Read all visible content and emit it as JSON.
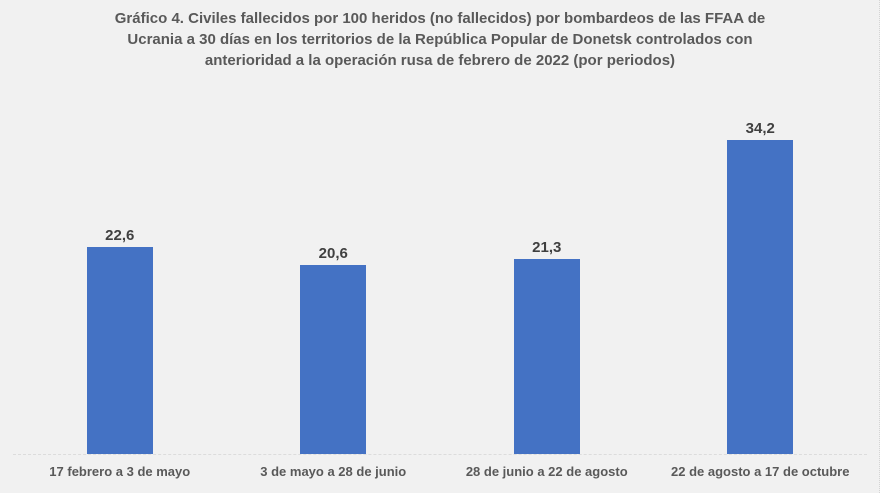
{
  "page": {
    "background_color": "#f1f1f1",
    "border_color": "#d4d4d4"
  },
  "chart_data": {
    "type": "bar",
    "title": "Gráfico 4. Civiles fallecidos por 100 heridos (no fallecidos) por bombardeos de las FFAA de Ucrania a 30 días en los territorios de la República Popular de Donetsk controlados con anterioridad a la operación rusa de febrero de 2022 (por periodos)",
    "categories": [
      "17 febrero a 3 de mayo",
      "3 de mayo a 28 de junio",
      "28 de junio a 22 de agosto",
      "22 de agosto a 17 de octubre"
    ],
    "values": [
      22.6,
      20.6,
      21.3,
      34.2
    ],
    "value_labels": [
      "22,6",
      "20,6",
      "21,3",
      "34,2"
    ],
    "xlabel": "",
    "ylabel": "",
    "ylim": [
      0,
      40
    ],
    "grid": false,
    "legend": false,
    "data_labels_shown": true,
    "bar_color": "#4472C4",
    "value_label_color": "#404040",
    "category_label_color": "#595959",
    "title_color": "#595959",
    "axis_line_color": "#dcdcdc"
  }
}
